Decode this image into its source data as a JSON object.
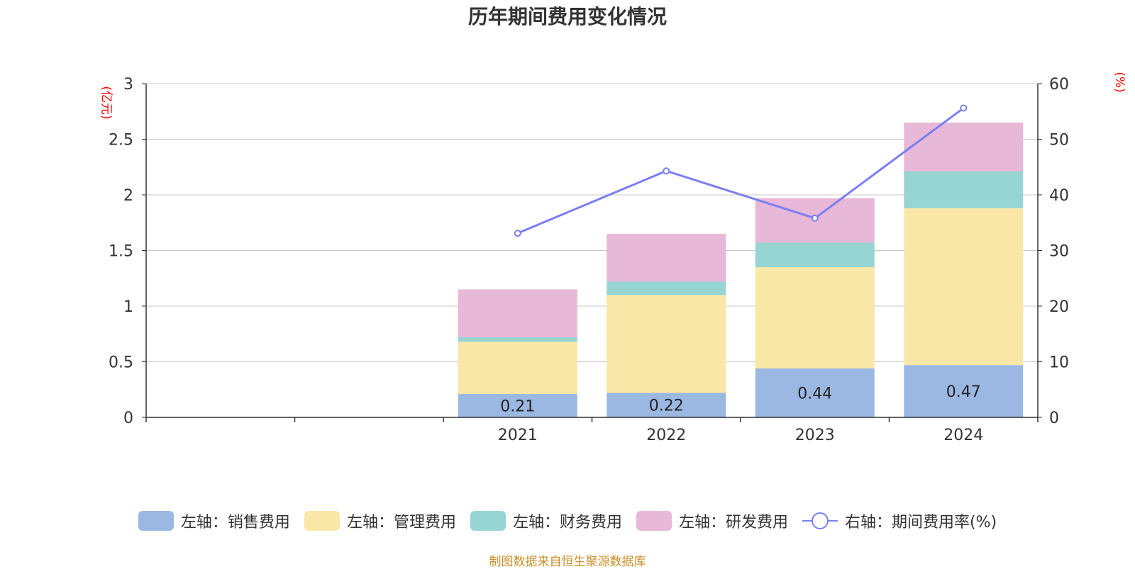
{
  "chart_data": {
    "type": "bar",
    "title": "历年期间费用变化情况",
    "categories": [
      "",
      "",
      "2021",
      "2022",
      "2023",
      "2024"
    ],
    "left_axis": {
      "unit_label": "(亿元)",
      "ylim": [
        0,
        3
      ],
      "ticks": [
        "0",
        "0.5",
        "1",
        "1.5",
        "2",
        "2.5",
        "3"
      ]
    },
    "right_axis": {
      "unit_label": "(%)",
      "ylim": [
        0,
        60
      ],
      "ticks": [
        "0",
        "10",
        "20",
        "30",
        "40",
        "50",
        "60"
      ]
    },
    "stacked": true,
    "grid": true,
    "legend_position": "bottom",
    "series": [
      {
        "name": "左轴：销售费用",
        "type": "bar",
        "axis": "left",
        "color": "#9bb8e2",
        "values": [
          null,
          null,
          0.21,
          0.22,
          0.44,
          0.47
        ],
        "data_labels": [
          "",
          "",
          "0.21",
          "0.22",
          "0.44",
          "0.47"
        ]
      },
      {
        "name": "左轴：管理费用",
        "type": "bar",
        "axis": "left",
        "color": "#f8e7a7",
        "values": [
          null,
          null,
          0.47,
          0.88,
          0.91,
          1.41
        ]
      },
      {
        "name": "左轴：财务费用",
        "type": "bar",
        "axis": "left",
        "color": "#97d4d4",
        "values": [
          null,
          null,
          0.04,
          0.12,
          0.22,
          0.33
        ]
      },
      {
        "name": "左轴：研发费用",
        "type": "bar",
        "axis": "left",
        "color": "#e7b8d8",
        "values": [
          null,
          null,
          0.43,
          0.43,
          0.4,
          0.44
        ]
      },
      {
        "name": "右轴：期间费用率(%)",
        "type": "line",
        "axis": "right",
        "color": "#7b7ff0",
        "values": [
          null,
          null,
          33.1,
          44.3,
          35.8,
          55.6
        ]
      }
    ]
  },
  "footer": {
    "source": "制图数据来自恒生聚源数据库"
  }
}
